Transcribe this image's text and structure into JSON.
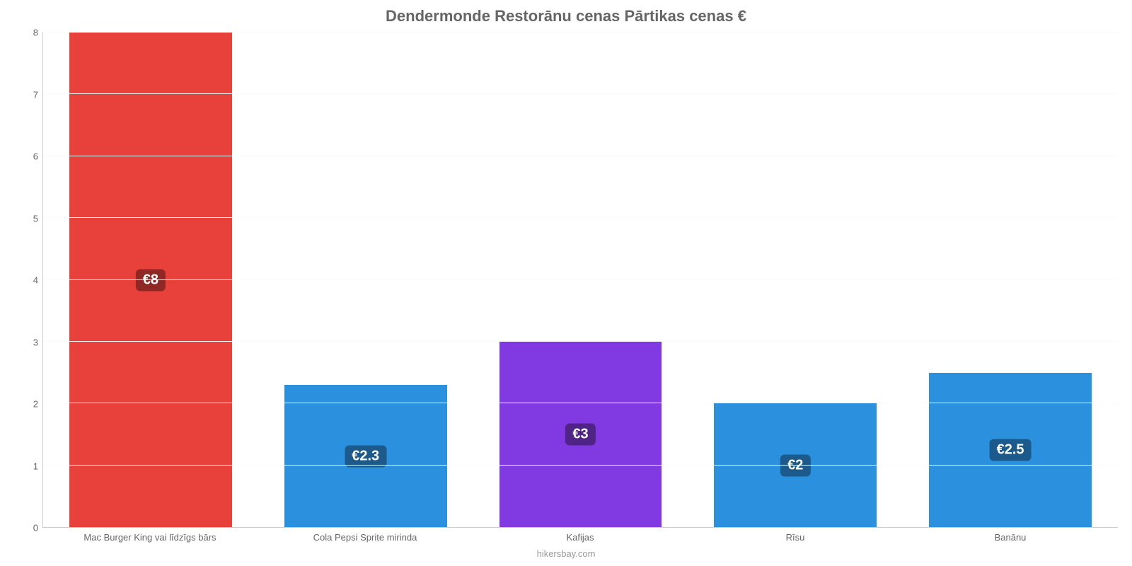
{
  "chart": {
    "type": "bar",
    "title": "Dendermonde Restorānu cenas Pārtikas cenas €",
    "title_color": "#666666",
    "title_fontsize": 22,
    "credit": "hikersbay.com",
    "credit_color": "#999999",
    "background_color": "#ffffff",
    "grid_color": "#fafafa",
    "axis_text_color": "#666666",
    "ylim": [
      0,
      8
    ],
    "yticks": [
      0,
      1,
      2,
      3,
      4,
      5,
      6,
      7,
      8
    ],
    "bar_width": 0.757,
    "categories": [
      "Mac Burger King vai līdzīgs bārs",
      "Cola Pepsi Sprite mirinda",
      "Kafijas",
      "Rīsu",
      "Banānu"
    ],
    "values": [
      8,
      2.3,
      3,
      2,
      2.5
    ],
    "display_labels": [
      "€8",
      "€2.3",
      "€3",
      "€2",
      "€2.5"
    ],
    "bar_colors": [
      "#e8403a",
      "#2b91df",
      "#8139e2",
      "#2b91df",
      "#2b91df"
    ],
    "label_bg_colors": [
      "#8f2824",
      "#1b5a8b",
      "#502487",
      "#1b5a8b",
      "#1b5a8b"
    ],
    "label_fontsize": 20,
    "x_label_fontsize": 13,
    "y_label_fontsize": 13
  }
}
